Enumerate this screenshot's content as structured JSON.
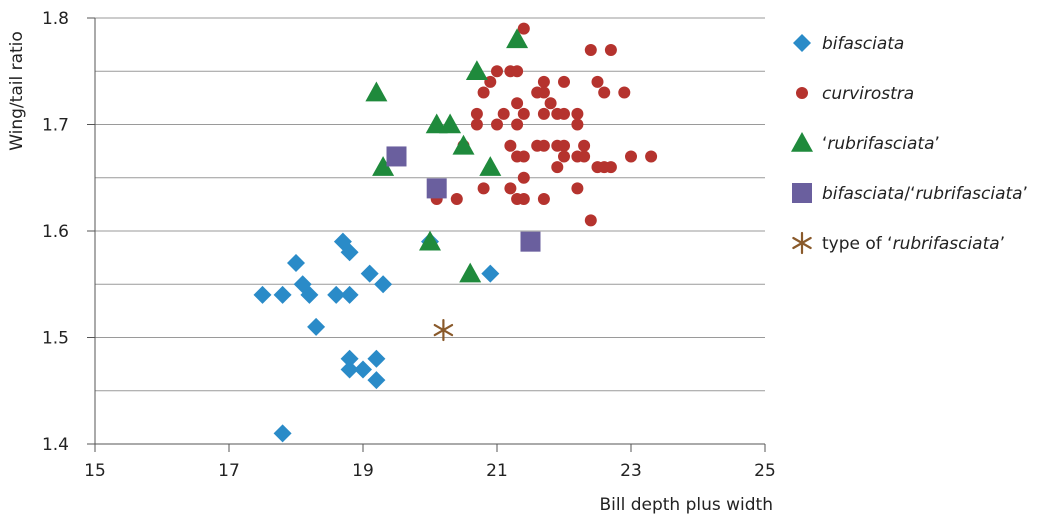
{
  "chart_data": {
    "type": "scatter",
    "xlabel": "Bill depth plus width",
    "ylabel": "Wing/tail ratio",
    "xlim": [
      15,
      25
    ],
    "ylim": [
      1.4,
      1.8
    ],
    "xticks": [
      15,
      17,
      19,
      21,
      23,
      25
    ],
    "yticks": [
      1.4,
      1.5,
      1.6,
      1.7,
      1.8
    ],
    "x_tick_labels": [
      "15",
      "17",
      "19",
      "21",
      "23",
      "25"
    ],
    "y_tick_labels": [
      "1.4",
      "1.5",
      "1.6",
      "1.7",
      "1.8"
    ],
    "grid": "horizontal",
    "legend_position": "right",
    "series": [
      {
        "name": "bifasciata",
        "marker": "diamond",
        "color": "#2a8bc8",
        "points": [
          [
            17.5,
            1.54
          ],
          [
            17.8,
            1.54
          ],
          [
            17.8,
            1.41
          ],
          [
            18.0,
            1.57
          ],
          [
            18.1,
            1.55
          ],
          [
            18.2,
            1.54
          ],
          [
            18.3,
            1.51
          ],
          [
            18.6,
            1.54
          ],
          [
            18.7,
            1.59
          ],
          [
            18.8,
            1.58
          ],
          [
            18.8,
            1.54
          ],
          [
            18.8,
            1.48
          ],
          [
            18.8,
            1.47
          ],
          [
            19.0,
            1.47
          ],
          [
            19.1,
            1.56
          ],
          [
            19.2,
            1.48
          ],
          [
            19.2,
            1.46
          ],
          [
            19.3,
            1.55
          ],
          [
            20.0,
            1.59
          ],
          [
            20.9,
            1.56
          ]
        ]
      },
      {
        "name": "curvirostra",
        "marker": "circle",
        "color": "#b5332e",
        "points": [
          [
            20.1,
            1.63
          ],
          [
            20.4,
            1.63
          ],
          [
            20.5,
            1.68
          ],
          [
            20.7,
            1.71
          ],
          [
            20.7,
            1.7
          ],
          [
            20.8,
            1.73
          ],
          [
            20.8,
            1.64
          ],
          [
            20.9,
            1.74
          ],
          [
            21.0,
            1.75
          ],
          [
            21.0,
            1.7
          ],
          [
            21.1,
            1.71
          ],
          [
            21.2,
            1.75
          ],
          [
            21.2,
            1.68
          ],
          [
            21.2,
            1.64
          ],
          [
            21.3,
            1.75
          ],
          [
            21.3,
            1.72
          ],
          [
            21.3,
            1.7
          ],
          [
            21.3,
            1.67
          ],
          [
            21.3,
            1.63
          ],
          [
            21.4,
            1.79
          ],
          [
            21.4,
            1.71
          ],
          [
            21.4,
            1.67
          ],
          [
            21.4,
            1.65
          ],
          [
            21.4,
            1.63
          ],
          [
            21.5,
            1.59
          ],
          [
            21.6,
            1.73
          ],
          [
            21.6,
            1.68
          ],
          [
            21.7,
            1.74
          ],
          [
            21.7,
            1.73
          ],
          [
            21.7,
            1.71
          ],
          [
            21.7,
            1.68
          ],
          [
            21.7,
            1.63
          ],
          [
            21.8,
            1.72
          ],
          [
            21.9,
            1.71
          ],
          [
            21.9,
            1.68
          ],
          [
            21.9,
            1.66
          ],
          [
            22.0,
            1.74
          ],
          [
            22.0,
            1.71
          ],
          [
            22.0,
            1.68
          ],
          [
            22.0,
            1.67
          ],
          [
            22.2,
            1.71
          ],
          [
            22.2,
            1.7
          ],
          [
            22.2,
            1.67
          ],
          [
            22.2,
            1.64
          ],
          [
            22.3,
            1.68
          ],
          [
            22.3,
            1.67
          ],
          [
            22.4,
            1.77
          ],
          [
            22.4,
            1.61
          ],
          [
            22.5,
            1.74
          ],
          [
            22.5,
            1.66
          ],
          [
            22.6,
            1.73
          ],
          [
            22.6,
            1.66
          ],
          [
            22.7,
            1.77
          ],
          [
            22.7,
            1.66
          ],
          [
            22.9,
            1.73
          ],
          [
            23.0,
            1.67
          ],
          [
            23.3,
            1.67
          ]
        ]
      },
      {
        "name": "‘rubrifasciata’",
        "marker": "triangle",
        "color": "#1f8a3c",
        "points": [
          [
            19.2,
            1.73
          ],
          [
            19.3,
            1.66
          ],
          [
            20.0,
            1.59
          ],
          [
            20.1,
            1.7
          ],
          [
            20.3,
            1.7
          ],
          [
            20.5,
            1.68
          ],
          [
            20.6,
            1.56
          ],
          [
            20.7,
            1.75
          ],
          [
            20.9,
            1.66
          ],
          [
            21.3,
            1.78
          ]
        ]
      },
      {
        "name": "bifasciata/‘rubrifasciata’",
        "marker": "square",
        "color": "#6a5f9e",
        "points": [
          [
            19.5,
            1.67
          ],
          [
            20.1,
            1.64
          ],
          [
            21.5,
            1.59
          ]
        ]
      },
      {
        "name": "type of ‘rubrifasciata’",
        "marker": "asterisk",
        "color": "#8a5a2b",
        "points": [
          [
            20.2,
            1.507
          ]
        ]
      }
    ],
    "legend": [
      {
        "parts": [
          {
            "text": "bifasciata",
            "italic": true
          }
        ]
      },
      {
        "parts": [
          {
            "text": "curvirostra",
            "italic": true
          }
        ]
      },
      {
        "parts": [
          {
            "text": "‘",
            "italic": false
          },
          {
            "text": "rubrifasciata",
            "italic": true
          },
          {
            "text": "’",
            "italic": false
          }
        ]
      },
      {
        "parts": [
          {
            "text": "bifasciata",
            "italic": true
          },
          {
            "text": "/‘",
            "italic": false
          },
          {
            "text": "rubrifasciata",
            "italic": true
          },
          {
            "text": "’",
            "italic": false
          }
        ]
      },
      {
        "parts": [
          {
            "text": "type of ‘",
            "italic": false
          },
          {
            "text": "rubrifasciata",
            "italic": true
          },
          {
            "text": "’",
            "italic": false
          }
        ]
      }
    ]
  }
}
